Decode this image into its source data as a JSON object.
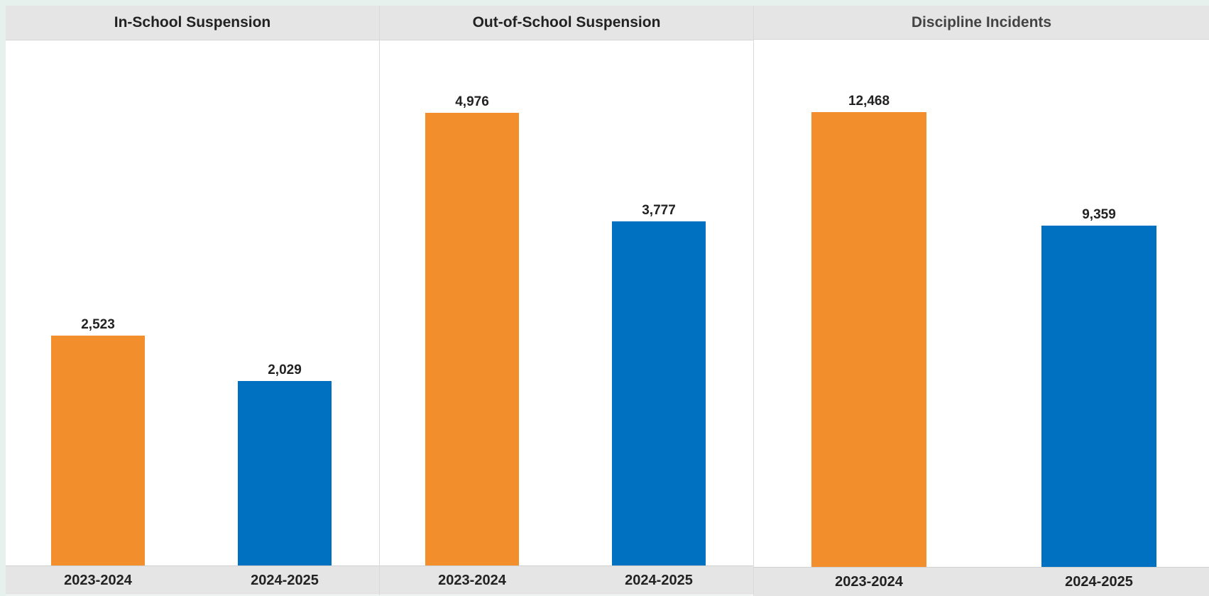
{
  "chart_data": [
    {
      "type": "bar",
      "title": "In-School Suspension",
      "categories": [
        "2023-2024",
        "2024-2025"
      ],
      "values": [
        2523,
        2029
      ],
      "value_labels": [
        "2,523",
        "2,029"
      ],
      "colors": [
        "#f28e2b",
        "#0070c0"
      ]
    },
    {
      "type": "bar",
      "title": "Out-of-School Suspension",
      "categories": [
        "2023-2024",
        "2024-2025"
      ],
      "values": [
        4976,
        3777
      ],
      "value_labels": [
        "4,976",
        "3,777"
      ],
      "colors": [
        "#f28e2b",
        "#0070c0"
      ]
    },
    {
      "type": "bar",
      "title": "Discipline Incidents",
      "categories": [
        "2023-2024",
        "2024-2025"
      ],
      "values": [
        12468,
        9359
      ],
      "value_labels": [
        "12,468",
        "9,359"
      ],
      "colors": [
        "#f28e2b",
        "#0070c0"
      ]
    }
  ]
}
